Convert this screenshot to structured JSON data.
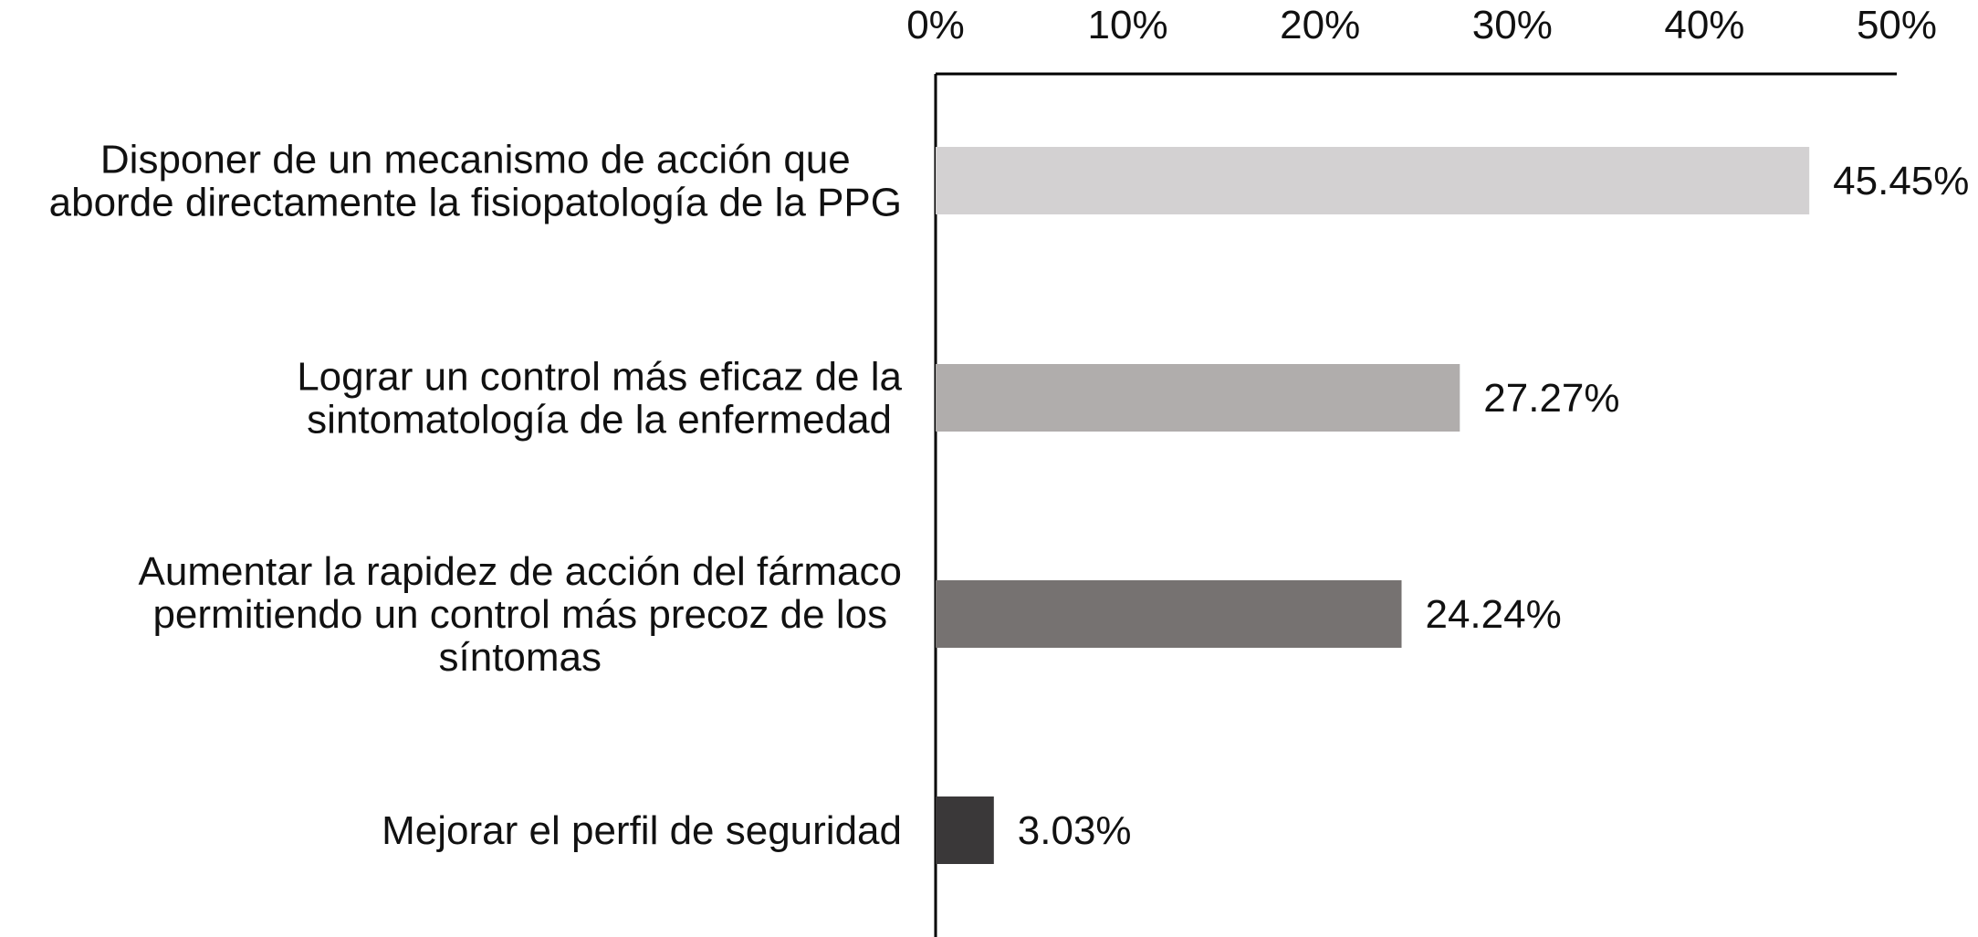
{
  "chart_data": {
    "type": "bar",
    "orientation": "horizontal",
    "categories": [
      [
        "Disponer de un mecanismo de acción que",
        "aborde directamente la fisiopatología de la PPG"
      ],
      [
        "Lograr un control más eficaz de la",
        "sintomatología de la enfermedad"
      ],
      [
        "Aumentar la rapidez de acción del fármaco",
        "permitiendo un control más precoz de los",
        "síntomas"
      ],
      [
        "Mejorar el perfil de seguridad"
      ]
    ],
    "values": [
      45.45,
      27.27,
      24.24,
      3.03
    ],
    "value_labels": [
      "45.45%",
      "27.27%",
      "24.24%",
      "3.03%"
    ],
    "bar_colors": [
      "#d3d1d2",
      "#b0adac",
      "#767271",
      "#3a3839"
    ],
    "x_ticks": [
      0,
      10,
      20,
      30,
      40,
      50
    ],
    "x_tick_labels": [
      "0%",
      "10%",
      "20%",
      "30%",
      "40%",
      "50%"
    ],
    "xlim": [
      0,
      50
    ],
    "x_axis_position": "top",
    "grid": false,
    "legend": "none"
  }
}
